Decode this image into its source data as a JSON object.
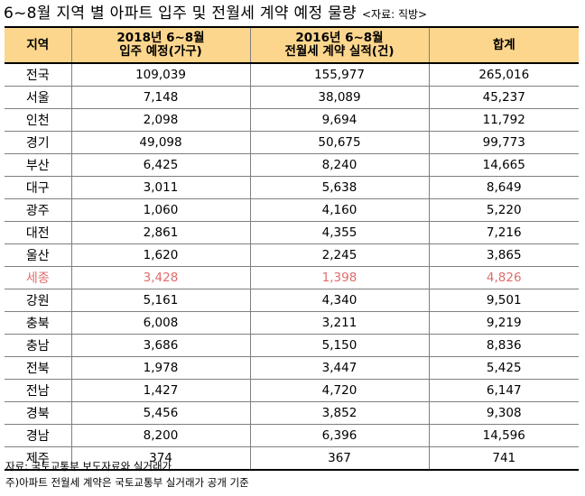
{
  "title": "6~8월 지역 별 아파트 입주 및 전월세 계약 예정 물량",
  "source": "<자료: 직방>",
  "headers": {
    "region": "지역",
    "col1_line1": "2018년 6~8월",
    "col1_line2": "입주 예정(가구)",
    "col2_line1": "2016년 6~8월",
    "col2_line2": "전월세 계약 실적(건)",
    "total": "합계"
  },
  "rows": [
    {
      "region": "전국",
      "move_in": "109,039",
      "contracts": "155,977",
      "total": "265,016"
    },
    {
      "region": "서울",
      "move_in": "7,148",
      "contracts": "38,089",
      "total": "45,237"
    },
    {
      "region": "인천",
      "move_in": "2,098",
      "contracts": "9,694",
      "total": "11,792"
    },
    {
      "region": "경기",
      "move_in": "49,098",
      "contracts": "50,675",
      "total": "99,773"
    },
    {
      "region": "부산",
      "move_in": "6,425",
      "contracts": "8,240",
      "total": "14,665"
    },
    {
      "region": "대구",
      "move_in": "3,011",
      "contracts": "5,638",
      "total": "8,649"
    },
    {
      "region": "광주",
      "move_in": "1,060",
      "contracts": "4,160",
      "total": "5,220"
    },
    {
      "region": "대전",
      "move_in": "2,861",
      "contracts": "4,355",
      "total": "7,216"
    },
    {
      "region": "울산",
      "move_in": "1,620",
      "contracts": "2,245",
      "total": "3,865"
    },
    {
      "region": "세종",
      "move_in": "3,428",
      "contracts": "1,398",
      "total": "4,826",
      "highlight": true
    },
    {
      "region": "강원",
      "move_in": "5,161",
      "contracts": "4,340",
      "total": "9,501"
    },
    {
      "region": "충북",
      "move_in": "6,008",
      "contracts": "3,211",
      "total": "9,219"
    },
    {
      "region": "충남",
      "move_in": "3,686",
      "contracts": "5,150",
      "total": "8,836"
    },
    {
      "region": "전북",
      "move_in": "1,978",
      "contracts": "3,447",
      "total": "5,425"
    },
    {
      "region": "전남",
      "move_in": "1,427",
      "contracts": "4,720",
      "total": "6,147"
    },
    {
      "region": "경북",
      "move_in": "5,456",
      "contracts": "3,852",
      "total": "9,308"
    },
    {
      "region": "경남",
      "move_in": "8,200",
      "contracts": "6,396",
      "total": "14,596"
    },
    {
      "region": "제주",
      "move_in": "374",
      "contracts": "367",
      "total": "741"
    }
  ],
  "highlight_color": "#e26b6b",
  "header_color": "#fcd68d",
  "notes": [
    "자료: 국토교통부 보도자료와 실거래가",
    "주)아파트 전월세 계약은 국토교통부 실거래가 공개 기준"
  ]
}
